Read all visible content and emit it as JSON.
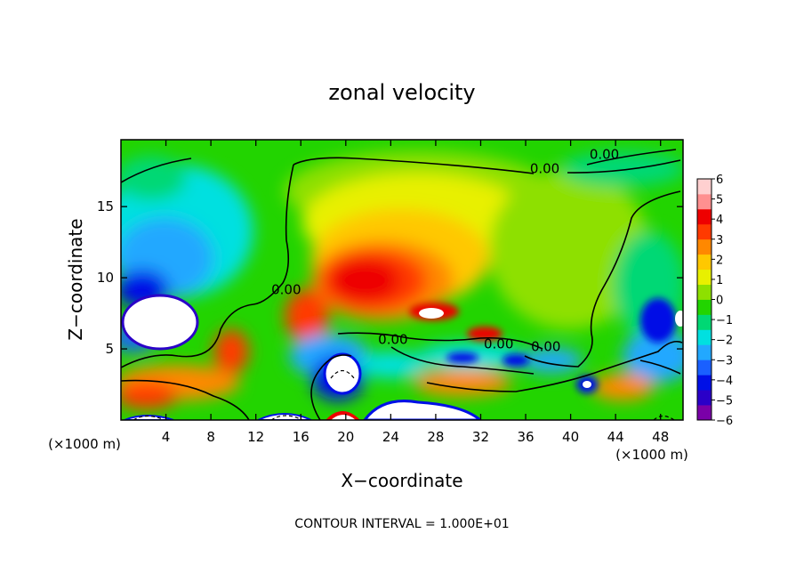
{
  "chart_data": {
    "type": "heatmap",
    "title": "zonal velocity",
    "xlabel": "X−coordinate",
    "ylabel": "Z−coordinate",
    "x_unit_label": "(×1000 m)",
    "z_unit_label": "(×1000 m)",
    "xlim": [
      0,
      50
    ],
    "ylim": [
      0,
      19.7
    ],
    "x_ticks": [
      4,
      8,
      12,
      16,
      20,
      24,
      28,
      32,
      36,
      40,
      44,
      48
    ],
    "x_tick_labels": [
      "4",
      "8",
      "12",
      "16",
      "20",
      "24",
      "28",
      "32",
      "36",
      "40",
      "44",
      "48"
    ],
    "y_ticks": [
      5,
      10,
      15
    ],
    "y_tick_labels": [
      "5",
      "10",
      "15"
    ],
    "colorbar": {
      "min": -6,
      "max": 6,
      "ticks": [
        6,
        5,
        4,
        3,
        2,
        1,
        0,
        -1,
        -2,
        -3,
        -4,
        -5,
        -6
      ],
      "tick_labels": [
        "6",
        "5",
        "4",
        "3",
        "2",
        "1",
        "0",
        "−1",
        "−2",
        "−3",
        "−4",
        "−5",
        "−6"
      ],
      "colors": [
        "#7a00a8",
        "#2a00c8",
        "#0010e6",
        "#1a60ff",
        "#22a8ff",
        "#00e0e0",
        "#00d874",
        "#22d400",
        "#8ee000",
        "#e8f000",
        "#ffc800",
        "#ff8800",
        "#ff3a00",
        "#ee0000",
        "#ff9090",
        "#ffd0d0"
      ]
    },
    "contour_labels": [
      {
        "text": "0.00",
        "x": 43,
        "z": 18.6
      },
      {
        "text": "0.00",
        "x": 37.7,
        "z": 17.6
      },
      {
        "text": "0.00",
        "x": 14.7,
        "z": 9.1
      },
      {
        "text": "0.00",
        "x": 24.2,
        "z": 5.6
      },
      {
        "text": "0.00",
        "x": 33.6,
        "z": 5.3
      },
      {
        "text": "0.00",
        "x": 37.8,
        "z": 5.1
      }
    ],
    "contour_interval_text": "CONTOUR INTERVAL = 1.000E+01"
  }
}
